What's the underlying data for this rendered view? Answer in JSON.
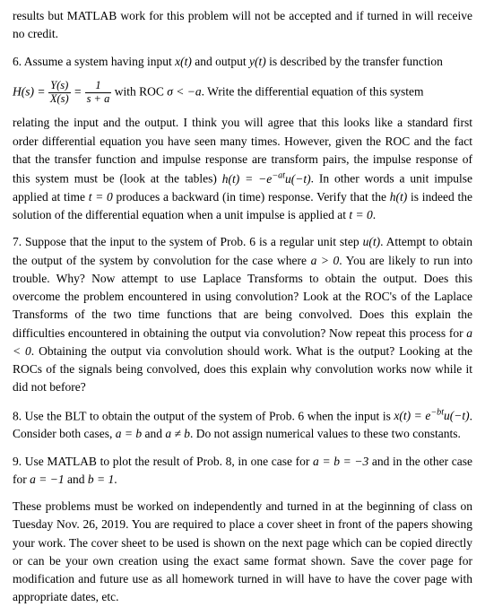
{
  "document": {
    "font_family": "Times New Roman",
    "font_size_pt": 13.5,
    "line_height": 1.5,
    "text_color": "#000000",
    "background_color": "#ffffff",
    "alignment": "justify",
    "para0": "results but MATLAB work for this problem will not be accepted and if turned in will receive no credit.",
    "p6a": "6. Assume a system having input ",
    "p6a_m1": "x(t)",
    "p6a_2": " and output ",
    "p6a_m2": "y(t)",
    "p6a_3": " is described by the transfer function",
    "eq_Hs": "H(s) = ",
    "eq_num1": "Y(s)",
    "eq_den1": "X(s)",
    "eq_eq": " = ",
    "eq_num2": "1",
    "eq_den2": "s + a",
    "eq_roc": " with ROC ",
    "eq_sigma": "σ < −a",
    "eq_tail": ".  Write the differential equation of this system",
    "p6b_1": "relating the input and the output.  I think you will agree that this looks like a standard first order differential equation you have seen many times.  However, given the ROC and the fact that the transfer function and impulse response are transform pairs, the impulse response of this system must be (look at the tables) ",
    "p6b_ht": "h(t) = −e",
    "p6b_ht_sup": "−at",
    "p6b_ht2": "u(−t)",
    "p6b_2": ".  In other words a unit impulse applied at time ",
    "p6b_t0": "t = 0",
    "p6b_3": " produces a backward (in time) response.  Verify that the ",
    "p6b_ht3": "h(t)",
    "p6b_4": " is indeed the solution of the differential equation when a unit impulse is applied at ",
    "p6b_t0b": "t = 0",
    "p6b_5": ".",
    "p7_1": "7. Suppose that the input to the system of Prob. 6 is a regular unit step ",
    "p7_ut": "u(t)",
    "p7_2": ".  Attempt to obtain the output of the system by convolution for the case where ",
    "p7_a0": "a > 0",
    "p7_3": ".  You are likely to run into trouble.  Why?  Now attempt to use Laplace Transforms to obtain the output.  Does this overcome the problem encountered in using convolution?  Look at the ROC's of the Laplace Transforms of the two time functions that are being convolved.  Does this explain the difficulties encountered in obtaining the output via convolution?  Now repeat this process for ",
    "p7_a0b": "a < 0",
    "p7_4": ".  Obtaining the output via convolution should work.  What is the output?  Looking at the ROCs of the signals being convolved, does this explain why convolution works now while it did not before?",
    "p8_1": "8. Use the BLT to obtain the output of the system of Prob. 6 when the input is ",
    "p8_xt": "x(t) = e",
    "p8_xt_sup": "−bt",
    "p8_xt2": "u(−t)",
    "p8_2": ".  Consider both cases, ",
    "p8_ab1": "a = b",
    "p8_3": " and ",
    "p8_ab2": "a ≠ b",
    "p8_4": ".  Do not assign numerical values to these two constants.",
    "p9_1": "9. Use MATLAB to plot the result of Prob. 8, in one case for ",
    "p9_ab": "a = b = −3",
    "p9_2": " and in the other case for ",
    "p9_a": "a = −1",
    "p9_3": " and ",
    "p9_b": "b = 1",
    "p9_4": ".",
    "p10": "These problems must be worked on independently and turned in at the beginning of class on Tuesday Nov. 26, 2019.  You are required to place a cover sheet in front of the papers showing your work.  The cover sheet to be used is shown on the next page which can be copied directly or can be your own creation using the exact same format shown.  Save the cover page for modification and future use as all homework turned in will have to have the cover page with appropriate dates, etc."
  }
}
